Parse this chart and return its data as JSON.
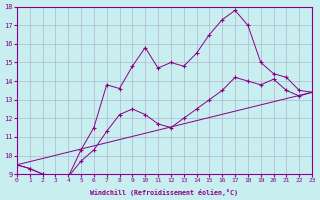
{
  "xlabel": "Windchill (Refroidissement éolien,°C)",
  "bg_color": "#c8eef0",
  "line_color": "#880088",
  "grid_color": "#aaaacc",
  "xlim": [
    0,
    23
  ],
  "ylim": [
    9,
    18
  ],
  "xticks": [
    0,
    1,
    2,
    3,
    4,
    5,
    6,
    7,
    8,
    9,
    10,
    11,
    12,
    13,
    14,
    15,
    16,
    17,
    18,
    19,
    20,
    21,
    22,
    23
  ],
  "yticks": [
    9,
    10,
    11,
    12,
    13,
    14,
    15,
    16,
    17,
    18
  ],
  "line1_x": [
    0,
    1,
    2,
    3,
    4,
    5,
    6,
    7,
    8,
    9,
    10,
    11,
    12,
    13,
    14,
    15,
    16,
    17,
    18,
    19,
    20,
    21,
    22,
    23
  ],
  "line1_y": [
    9.5,
    9.3,
    9.0,
    8.85,
    8.85,
    10.3,
    11.5,
    13.8,
    13.6,
    14.8,
    15.8,
    14.7,
    15.0,
    14.8,
    15.5,
    16.5,
    17.3,
    17.8,
    17.0,
    15.0,
    14.4,
    14.2,
    13.5,
    13.4
  ],
  "line2_x": [
    0,
    1,
    2,
    3,
    4,
    5,
    6,
    7,
    8,
    9,
    10,
    11,
    12,
    13,
    14,
    15,
    16,
    17,
    18,
    19,
    20,
    21,
    22,
    23
  ],
  "line2_y": [
    9.5,
    9.3,
    9.0,
    8.85,
    8.85,
    9.7,
    10.3,
    11.3,
    12.2,
    12.5,
    12.2,
    11.7,
    11.5,
    12.0,
    12.5,
    13.0,
    13.5,
    14.2,
    14.0,
    13.8,
    14.1,
    13.5,
    13.2,
    13.4
  ],
  "line3_x": [
    0,
    23
  ],
  "line3_y": [
    9.5,
    13.4
  ],
  "marker": "+"
}
